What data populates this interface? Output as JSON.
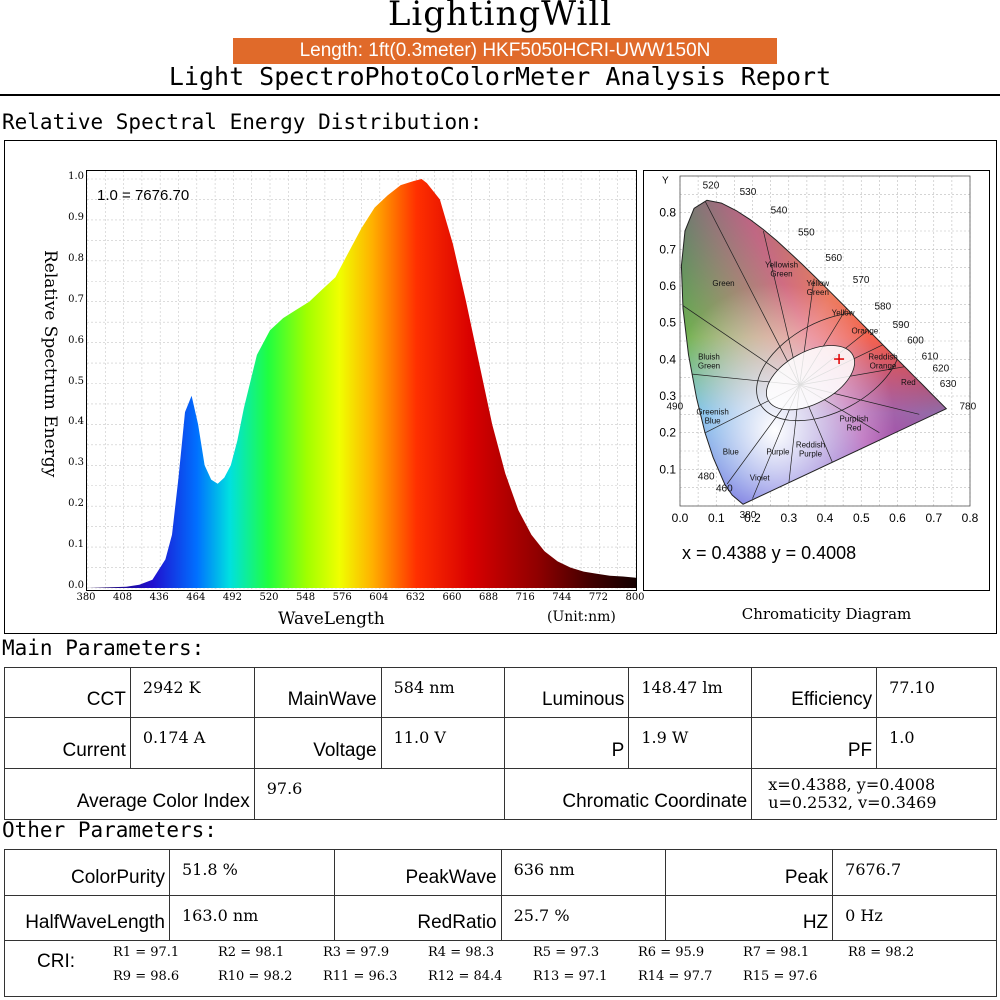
{
  "header": {
    "brand": "LightingWill",
    "product": "Length: 1ft(0.3meter)  HKF5050HCRI-UWW150N",
    "report_title": "Light SpectroPhotoColorMeter Analysis Report"
  },
  "sections": {
    "spectral": "Relative Spectral Energy Distribution:",
    "main": "Main Parameters:",
    "other": "Other Parameters:"
  },
  "chart_data": [
    {
      "type": "area",
      "title": "",
      "ylabel": "Relative Spectrum Energy",
      "xlabel": "WaveLength",
      "unit_note": "(Unit:nm)",
      "scale_note": "1.0 = 7676.70",
      "xlim": [
        380,
        800
      ],
      "ylim": [
        0,
        1.0
      ],
      "grid": true,
      "x_ticks": [
        "380",
        "408",
        "436",
        "464",
        "492",
        "520",
        "548",
        "576",
        "604",
        "632",
        "660",
        "688",
        "716",
        "744",
        "772",
        "800"
      ],
      "y_ticks": [
        "0.0",
        "0.1",
        "0.2",
        "0.3",
        "0.4",
        "0.5",
        "0.6",
        "0.7",
        "0.8",
        "0.9",
        "1.0"
      ],
      "x": [
        380,
        410,
        420,
        430,
        440,
        445,
        450,
        455,
        460,
        465,
        470,
        475,
        480,
        485,
        490,
        495,
        500,
        510,
        520,
        530,
        540,
        550,
        560,
        570,
        580,
        590,
        600,
        610,
        620,
        630,
        636,
        640,
        650,
        660,
        670,
        680,
        690,
        700,
        710,
        720,
        730,
        740,
        750,
        760,
        770,
        780,
        790,
        800
      ],
      "y": [
        0.0,
        0.003,
        0.008,
        0.02,
        0.07,
        0.13,
        0.27,
        0.43,
        0.47,
        0.4,
        0.3,
        0.265,
        0.255,
        0.27,
        0.3,
        0.36,
        0.44,
        0.57,
        0.63,
        0.66,
        0.68,
        0.7,
        0.73,
        0.76,
        0.82,
        0.88,
        0.93,
        0.96,
        0.985,
        0.995,
        1.0,
        0.99,
        0.95,
        0.84,
        0.7,
        0.55,
        0.4,
        0.28,
        0.19,
        0.13,
        0.09,
        0.065,
        0.05,
        0.04,
        0.035,
        0.03,
        0.028,
        0.025
      ]
    },
    {
      "type": "scatter",
      "title": "Chromaticity Diagram",
      "xlabel": "",
      "ylabel": "Y",
      "xlim": [
        0,
        0.8
      ],
      "ylim": [
        0,
        0.9
      ],
      "x_ticks": [
        "0.0",
        "0.1",
        "0.2",
        "0.3",
        "0.4",
        "0.5",
        "0.6",
        "0.7",
        "0.8"
      ],
      "y_ticks": [
        "0.1",
        "0.2",
        "0.3",
        "0.4",
        "0.5",
        "0.6",
        "0.7",
        "0.8"
      ],
      "locus_labels": [
        "380",
        "460",
        "480",
        "490",
        "520",
        "530",
        "540",
        "550",
        "560",
        "570",
        "580",
        "590",
        "600",
        "610",
        "620",
        "630",
        "780"
      ],
      "region_labels": [
        "Green",
        "Yellowish Green",
        "Yellow Green",
        "Yellow",
        "Orange",
        "Bluish Green",
        "Reddish Orange",
        "Red",
        "Greenish Blue",
        "Blue",
        "Purple",
        "Reddish Purple",
        "Purplish Red",
        "Violet"
      ],
      "point": {
        "x": 0.4388,
        "y": 0.4008
      },
      "readout": "x = 0.4388   y = 0.4008"
    }
  ],
  "main_params": {
    "cct_label": "CCT",
    "cct_value": "2942 K",
    "mainwave_label": "MainWave",
    "mainwave_value": "584 nm",
    "luminous_label": "Luminous",
    "luminous_value": "148.47 lm",
    "efficiency_label": "Efficiency",
    "efficiency_value": "77.10",
    "current_label": "Current",
    "current_value": "0.174 A",
    "voltage_label": "Voltage",
    "voltage_value": "11.0 V",
    "p_label": "P",
    "p_value": "1.9 W",
    "pf_label": "PF",
    "pf_value": "1.0",
    "aci_label": "Average Color Index",
    "aci_value": "97.6",
    "chroma_label": "Chromatic Coordinate",
    "chroma_line1": "x=0.4388,  y=0.4008",
    "chroma_line2": "u=0.2532,  v=0.3469"
  },
  "other_params": {
    "purity_label": "ColorPurity",
    "purity_value": "51.8 %",
    "peakwave_label": "PeakWave",
    "peakwave_value": "636 nm",
    "peak_label": "Peak",
    "peak_value": "7676.7",
    "halfwave_label": "HalfWaveLength",
    "halfwave_value": "163.0 nm",
    "redratio_label": "RedRatio",
    "redratio_value": "25.7 %",
    "hz_label": "HZ",
    "hz_value": "0 Hz",
    "cri_label": "CRI:",
    "cri_row1": [
      "R1 = 97.1",
      "R2 = 98.1",
      "R3 = 97.9",
      "R4 = 98.3",
      "R5 = 97.3",
      "R6 = 95.9",
      "R7 = 98.1",
      "R8 = 98.2"
    ],
    "cri_row2": [
      "R9 = 98.6",
      "R10 = 98.2",
      "R11 = 96.3",
      "R12 = 84.4",
      "R13 = 97.1",
      "R14 = 97.7",
      "R15 = 97.6"
    ]
  },
  "colors": {
    "banner": "#e06a2a",
    "marker": "#e00000"
  }
}
